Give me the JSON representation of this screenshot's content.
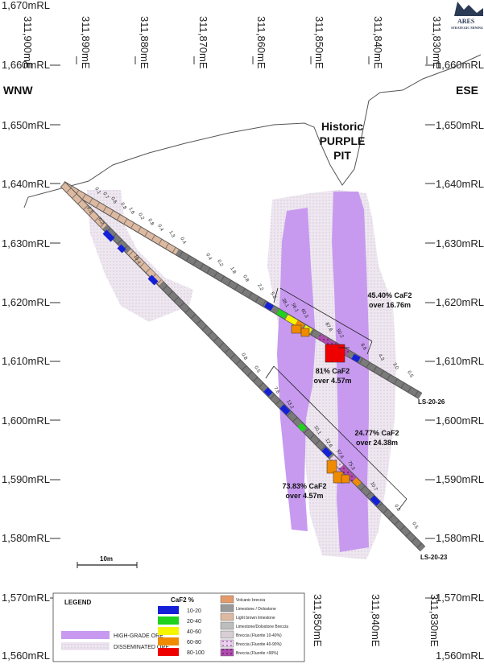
{
  "logo": {
    "name": "ARES",
    "tagline": "STRATEGIC MINING"
  },
  "directions": {
    "west": "WNW",
    "east": "ESE"
  },
  "elevations_left": [
    "1,670mRL",
    "1,660mRL",
    "1,650mRL",
    "1,640mRL",
    "1,630mRL",
    "1,620mRL",
    "1,610mRL",
    "1,600mRL",
    "1,590mRL",
    "1,580mRL",
    "1,570mRL",
    "1,560mRL"
  ],
  "elevations_right": [
    "1,660mRL",
    "1,650mRL",
    "1,640mRL",
    "1,630mRL",
    "1,620mRL",
    "1,610mRL",
    "1,600mRL",
    "1,590mRL",
    "1,580mRL",
    "1,570mRL",
    "1,560mRL"
  ],
  "eastings_top": [
    "311,900mE",
    "311,890mE",
    "311,880mE",
    "311,870mE",
    "311,860mE",
    "311,850mE",
    "311,840mE",
    "311,830mE"
  ],
  "eastings_bottom": [
    "311,850mE",
    "311,840mE",
    "311,830mE"
  ],
  "pit": {
    "line1": "Historic",
    "line2": "PURPLE",
    "line3": "PIT"
  },
  "annotations": [
    {
      "line1": "45.40% CaF2",
      "line2": "over 16.76m"
    },
    {
      "line1": "81% CaF2",
      "line2": "over 4.57m"
    },
    {
      "line1": "24.77% CaF2",
      "line2": "over 24.38m"
    },
    {
      "line1": "73.83% CaF2",
      "line2": "over 4.57m"
    }
  ],
  "holes": {
    "upper": "LS-20-26",
    "lower": "LS-20-23"
  },
  "scale_bar": "10m",
  "legend": {
    "title": "LEGEND",
    "ore": [
      "HIGH-GRADE ORE",
      "DISSEMINATED ORE"
    ],
    "caf2_title": "CaF2 %",
    "caf2": [
      {
        "label": "10-20",
        "color": "#1420d8"
      },
      {
        "label": "20-40",
        "color": "#1ed21e"
      },
      {
        "label": "40-60",
        "color": "#f5f500"
      },
      {
        "label": "60-80",
        "color": "#f08a00"
      },
      {
        "label": "80-100",
        "color": "#ee0000"
      }
    ],
    "lithology": [
      "Volcanic breccia",
      "Limestone / Dolostone",
      "Light brown limestone",
      "Limestone/Dolostone Breccia",
      "Breccia (Fluorite 10-40%)",
      "Breccia (Fluorite 40-90%)",
      "Breccia (Fluorite >90%)"
    ]
  },
  "colors": {
    "high_grade": "#c79af0",
    "disseminated": "#e7dcec",
    "drill_grey": "#6d6d6d",
    "drill_tan": "#dcb9a0"
  }
}
